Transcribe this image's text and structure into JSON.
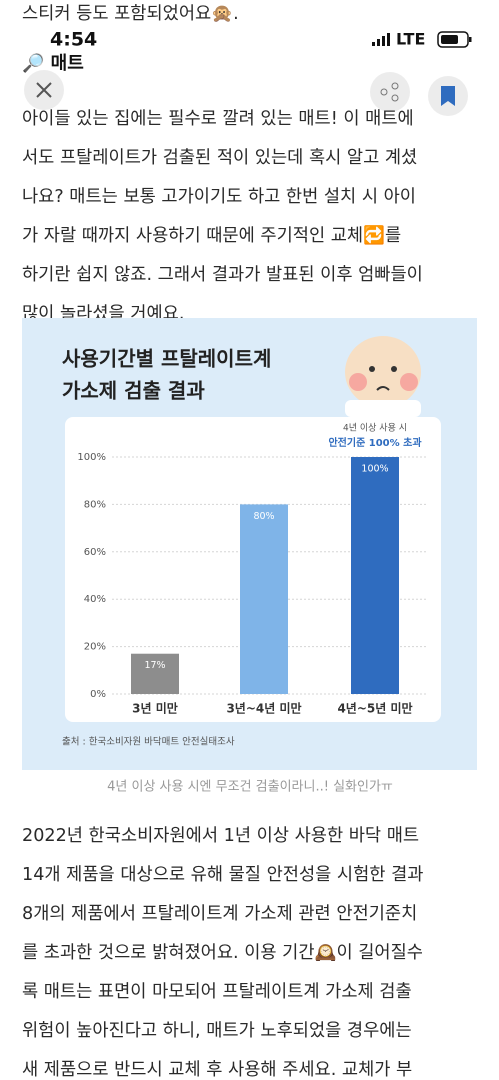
{
  "top_fragment": "스티커 등도 포함되었어요🙊.",
  "status_bar": {
    "time": "4:54",
    "network": "LTE"
  },
  "header": {
    "title": "🔎 매트"
  },
  "paragraph_1": [
    "아이들 있는 집에는 필수로 깔려 있는 매트! 이 매트에",
    "서도 프탈레이트가 검출된 적이 있는데 혹시 알고 계셨",
    "나요? 매트는 보통 고가이기도 하고 한번 설치 시 아이",
    "가 자랄 때까지 사용하기 때문에 주기적인 교체🔁를",
    "하기란 쉽지 않죠. 그래서 결과가 발표된 이후 엄빠들이",
    "많이 놀라셨을 거예요."
  ],
  "chart_data": {
    "type": "bar",
    "title": [
      "사용기간별 프탈레이트계",
      "가소제 검출 결과"
    ],
    "annotation": [
      "4년 이상 사용 시",
      "안전기준 100% 초과"
    ],
    "categories": [
      "3년 미만",
      "3년~4년 미만",
      "4년~5년 미만"
    ],
    "values": [
      17,
      80,
      100
    ],
    "value_labels": [
      "17%",
      "80%",
      "100%"
    ],
    "colors": [
      "#8d8d8d",
      "#7fb4e8",
      "#2f6cbf"
    ],
    "ylim": [
      0,
      100
    ],
    "yticks": [
      {
        "value": 0,
        "label": "0%"
      },
      {
        "value": 20,
        "label": "20%"
      },
      {
        "value": 40,
        "label": "40%"
      },
      {
        "value": 60,
        "label": "60%"
      },
      {
        "value": 80,
        "label": "80%"
      },
      {
        "value": 100,
        "label": "100%"
      }
    ],
    "grid": true,
    "source": "출처 : 한국소비자원 바닥매트 안전실태조사"
  },
  "caption": "4년 이상 사용 시엔 무조건 검출이라니..! 실화인가ㅠ",
  "paragraph_2": [
    "2022년 한국소비자원에서 1년 이상 사용한 바닥 매트",
    "14개 제품을 대상으로 유해 물질 안전성을 시험한 결과",
    "8개의 제품에서 프탈레이트계 가소제 관련 안전기준치",
    "를 초과한 것으로 밝혀졌어요. 이용 기간🕰️이 길어질수",
    "록 매트는 표면이 마모되어 프탈레이트계 가소제 검출",
    "위험이 높아진다고 하니, 매트가 노후되었을 경우에는",
    "새 제품으로 반드시 교체 후 사용해 주세요. 교체가 부"
  ]
}
